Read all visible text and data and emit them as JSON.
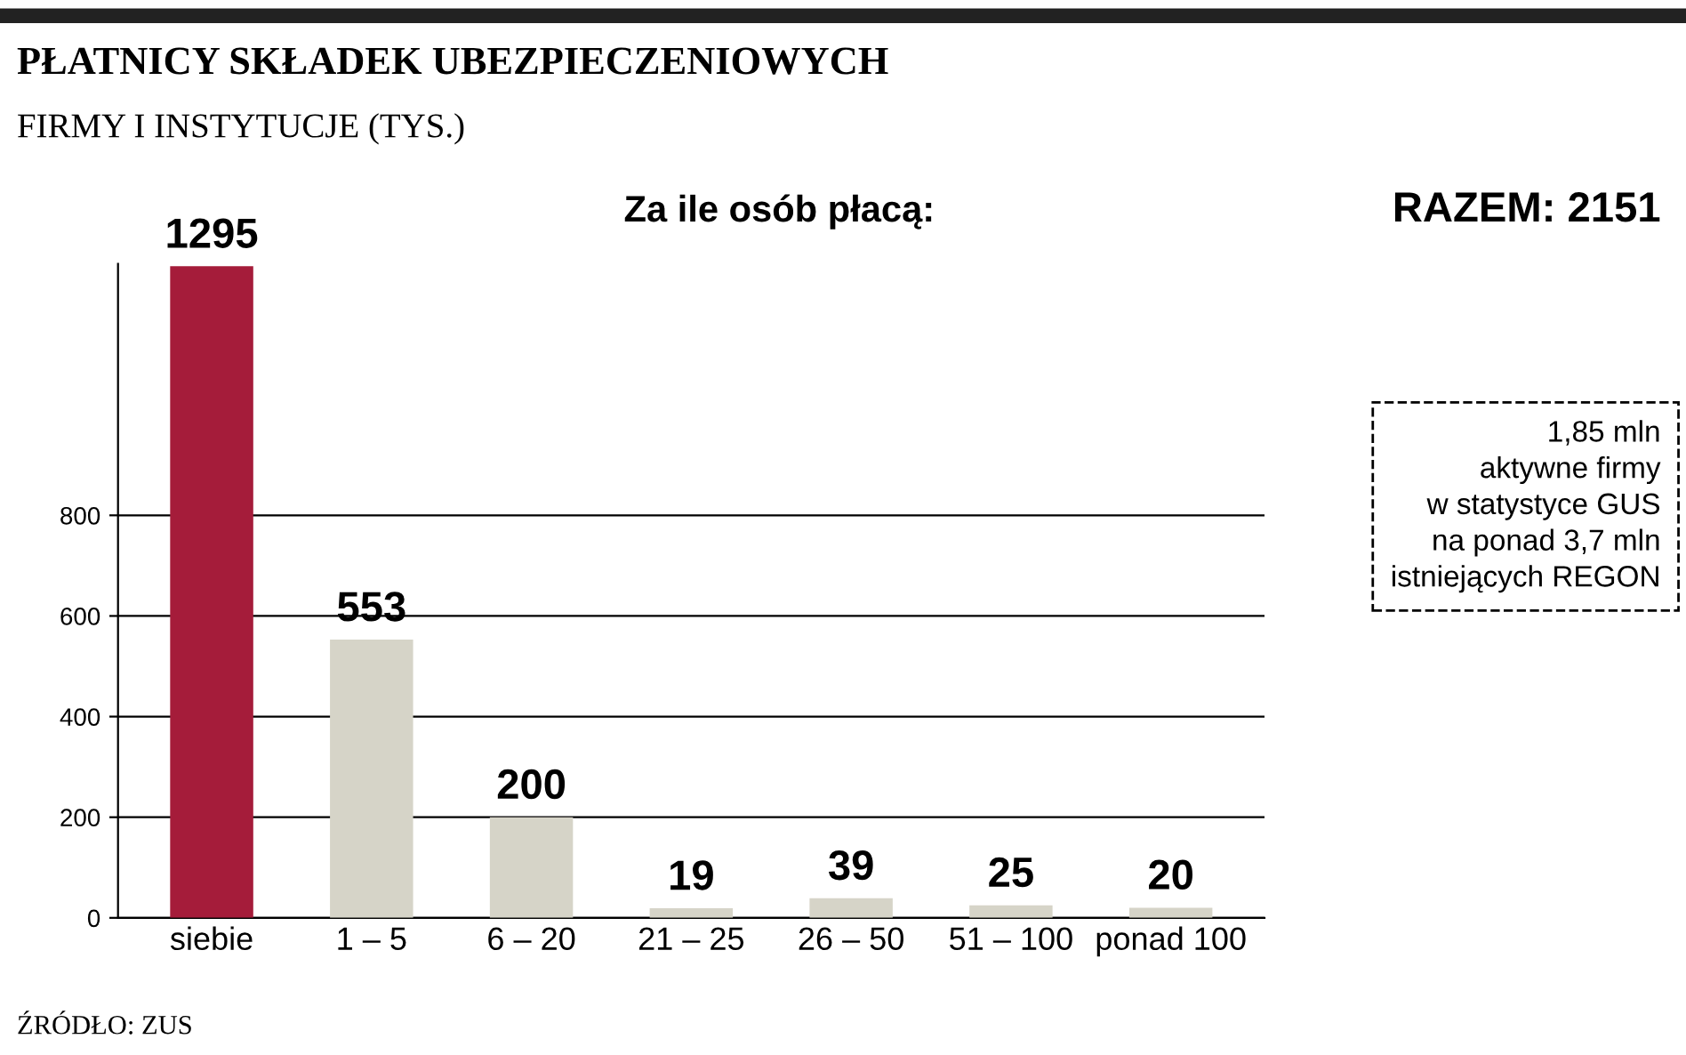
{
  "chart_data": {
    "type": "bar",
    "title": "PŁATNICY SKŁADEK UBEZPIECZENIOWYCH",
    "subtitle": "FIRMY I INSTYTUCJE (TYS.)",
    "categories": [
      "siebie",
      "1 – 5",
      "6 – 20",
      "21 – 25",
      "26 – 50",
      "51 – 100",
      "ponad 100"
    ],
    "values": [
      1295,
      553,
      200,
      19,
      39,
      25,
      20
    ],
    "colors": [
      "#a51c3a",
      "#d6d4c8",
      "#d6d4c8",
      "#d6d4c8",
      "#d6d4c8",
      "#d6d4c8",
      "#d6d4c8"
    ],
    "ylim": [
      0,
      1300
    ],
    "yticks": [
      0,
      200,
      400,
      600,
      800
    ],
    "grid": "y",
    "data_labels": true,
    "annotations": [
      "Za ile osób płacą:",
      "RAZEM: 2151",
      "1,85 mln\naktywne firmy\nw statystyce GUS\nna ponad 3,7 mln\nistniejących REGON",
      "ŹRÓDŁO: ZUS"
    ]
  }
}
